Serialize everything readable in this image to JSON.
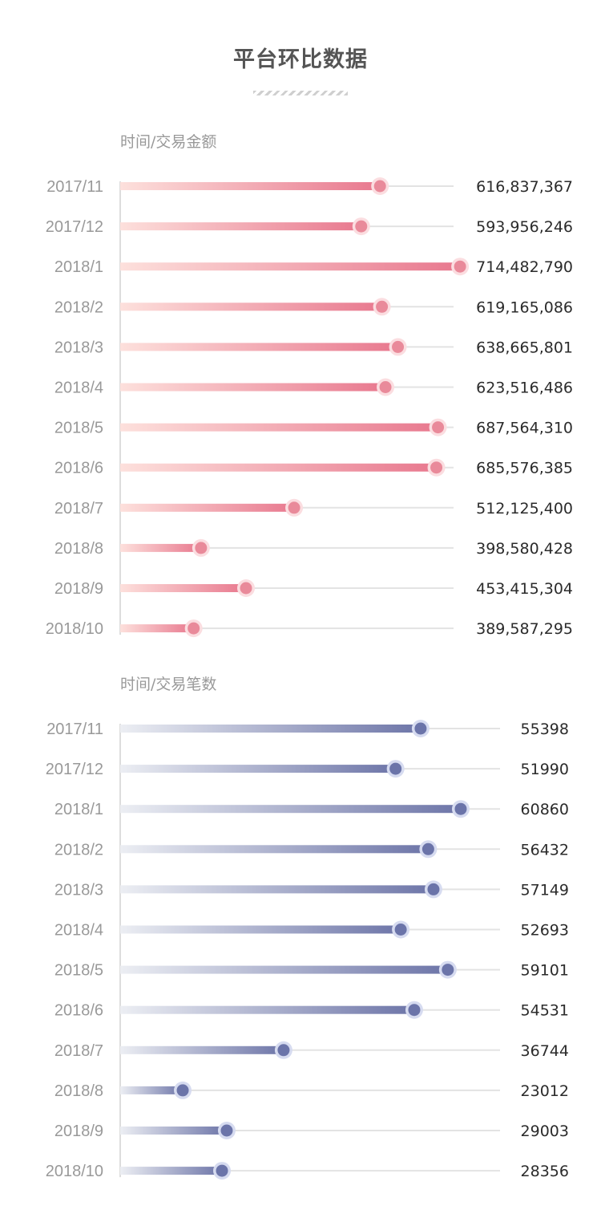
{
  "page": {
    "title": "平台环比数据"
  },
  "chart_data": [
    {
      "type": "bar",
      "caption": "时间/交易金额",
      "colors": {
        "start": "#fde0dc",
        "end": "#e8788e",
        "dot": "#e98a9a",
        "dot_ring": "#fbdde0",
        "track": "#e3e3e3"
      },
      "xlim": [
        300000000,
        730000000
      ],
      "categories": [
        "2017/11",
        "2017/12",
        "2018/1",
        "2018/2",
        "2018/3",
        "2018/4",
        "2018/5",
        "2018/6",
        "2018/7",
        "2018/8",
        "2018/9",
        "2018/10"
      ],
      "values": [
        616837367,
        593956246,
        714482790,
        619165086,
        638665801,
        623516486,
        687564310,
        685576385,
        512125400,
        398580428,
        453415304,
        389587295
      ],
      "value_labels": [
        "616,837,367",
        "593,956,246",
        "714,482,790",
        "619,165,086",
        "638,665,801",
        "623,516,486",
        "687,564,310",
        "685,576,385",
        "512,125,400",
        "398,580,428",
        "453,415,304",
        "389,587,295"
      ]
    },
    {
      "type": "bar",
      "caption": "时间/交易笔数",
      "colors": {
        "start": "#eceef3",
        "end": "#6d75a8",
        "dot": "#6b74a9",
        "dot_ring": "#d6dbf0",
        "track": "#e3e3e3"
      },
      "xlim": [
        14500,
        62500
      ],
      "categories": [
        "2017/11",
        "2017/12",
        "2018/1",
        "2018/2",
        "2018/3",
        "2018/4",
        "2018/5",
        "2018/6",
        "2018/7",
        "2018/8",
        "2018/9",
        "2018/10"
      ],
      "values": [
        55398,
        51990,
        60860,
        56432,
        57149,
        52693,
        59101,
        54531,
        36744,
        23012,
        29003,
        28356
      ],
      "value_labels": [
        "55398",
        "51990",
        "60860",
        "56432",
        "57149",
        "52693",
        "59101",
        "54531",
        "36744",
        "23012",
        "29003",
        "28356"
      ]
    }
  ]
}
